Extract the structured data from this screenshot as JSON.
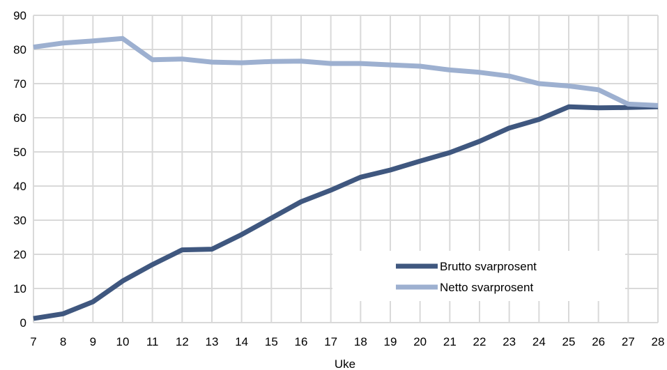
{
  "chart_data": {
    "type": "line",
    "title": "",
    "xlabel": "Uke",
    "ylabel": "",
    "x": [
      7,
      8,
      9,
      10,
      11,
      12,
      13,
      14,
      15,
      16,
      17,
      18,
      19,
      20,
      21,
      22,
      23,
      24,
      25,
      26,
      27,
      28
    ],
    "xlim": [
      7,
      28
    ],
    "ylim": [
      0,
      90
    ],
    "yticks": [
      0,
      10,
      20,
      30,
      40,
      50,
      60,
      70,
      80,
      90
    ],
    "grid": true,
    "legend_position": "bottom-right",
    "series": [
      {
        "name": "Brutto svarprosent",
        "color": "#3f577f",
        "values": [
          1.2,
          2.6,
          6.1,
          12.2,
          17.0,
          21.3,
          21.5,
          25.8,
          30.6,
          35.4,
          38.8,
          42.6,
          44.7,
          47.3,
          49.8,
          53.1,
          57.0,
          59.5,
          63.2,
          62.9,
          63.0,
          63.2
        ]
      },
      {
        "name": "Netto svarprosent",
        "color": "#9db0d0",
        "values": [
          80.7,
          81.9,
          82.5,
          83.2,
          77.0,
          77.2,
          76.3,
          76.1,
          76.5,
          76.6,
          75.9,
          75.9,
          75.5,
          75.1,
          74.0,
          73.3,
          72.2,
          70.0,
          69.3,
          68.2,
          64.0,
          63.6
        ]
      }
    ]
  }
}
